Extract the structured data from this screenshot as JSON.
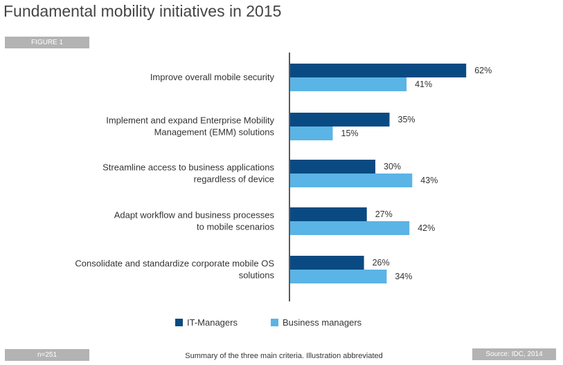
{
  "title": "Fundamental mobility initiatives in 2015",
  "figure_tag": "FIGURE 1",
  "sample_size": "n=251",
  "footnote": "Summary of the three main criteria. Illustration abbreviated",
  "source": "Source: IDC, 2014",
  "colors": {
    "it": "#0a4a82",
    "business": "#5ab4e5"
  },
  "chart_data": {
    "type": "bar",
    "orientation": "horizontal",
    "categories": [
      [
        "Improve overall mobile security"
      ],
      [
        "Implement and expand Enterprise Mobility",
        "Management (EMM) solutions"
      ],
      [
        "Streamline access to business applications",
        "regardless of device"
      ],
      [
        "Adapt workflow and business processes",
        "to mobile scenarios"
      ],
      [
        "Consolidate and standardize corporate mobile OS",
        "solutions"
      ]
    ],
    "series": [
      {
        "name": "IT-Managers",
        "values": [
          62,
          35,
          30,
          27,
          26
        ],
        "labels": [
          "62%",
          "35%",
          "30%",
          "27%",
          "26%"
        ]
      },
      {
        "name": "Business managers",
        "values": [
          41,
          15,
          43,
          42,
          34
        ],
        "labels": [
          "41%",
          "15%",
          "43%",
          "42%",
          "34%"
        ]
      }
    ],
    "unit": "%",
    "legend_position": "bottom"
  }
}
